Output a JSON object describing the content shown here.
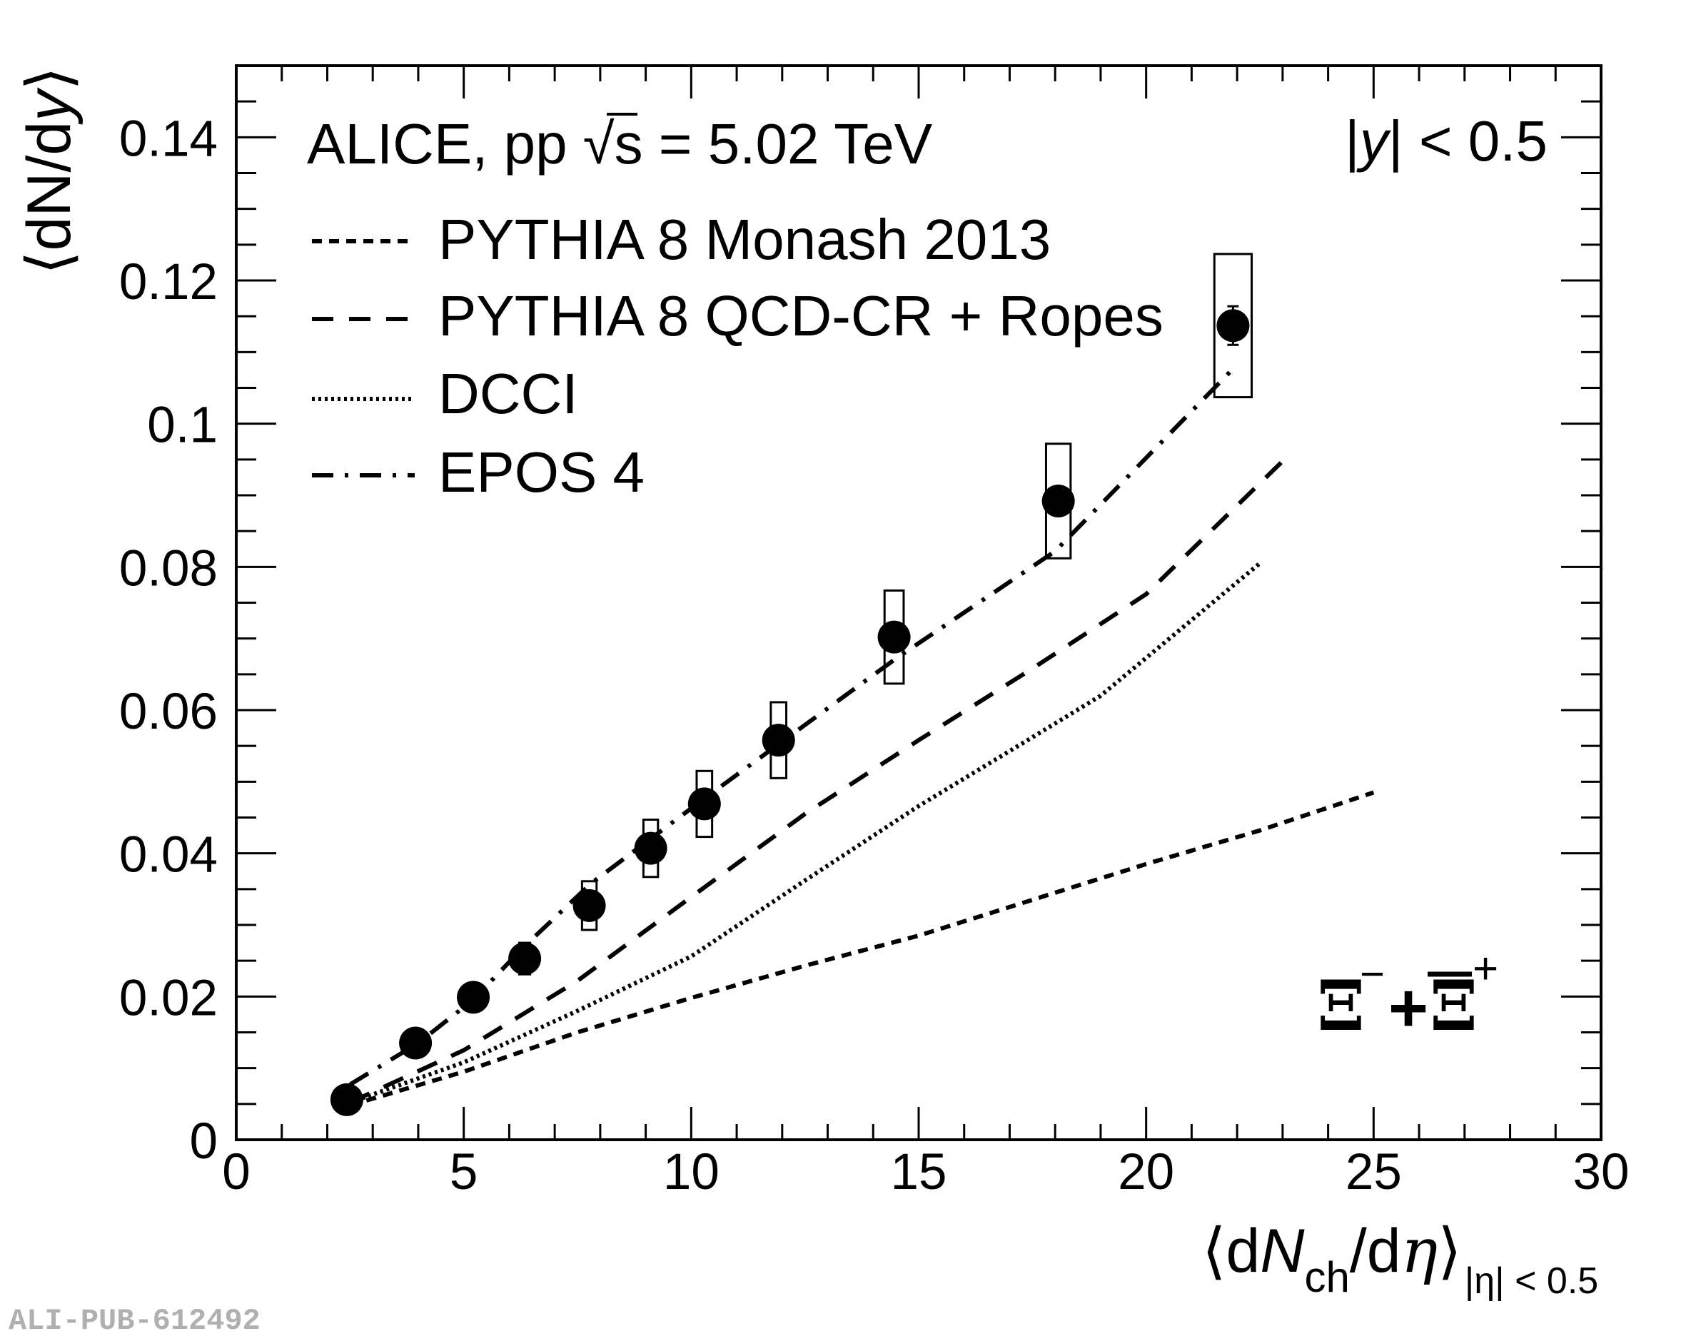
{
  "chart_data": {
    "type": "scatter",
    "title": "",
    "xlabel": {
      "open": "⟨d",
      "N": "N",
      "sub_ch": "ch",
      "slash_d": "/d",
      "eta": "η",
      "close": "⟩",
      "subscript": "|η| < 0.5"
    },
    "ylabel": {
      "open": "⟨dN/d",
      "y": "y",
      "close": "⟩"
    },
    "xlim": [
      0,
      30
    ],
    "ylim": [
      0,
      0.15
    ],
    "x_ticks": [
      {
        "value": 0,
        "label": "0"
      },
      {
        "value": 5,
        "label": "5"
      },
      {
        "value": 10,
        "label": "10"
      },
      {
        "value": 15,
        "label": "15"
      },
      {
        "value": 20,
        "label": "20"
      },
      {
        "value": 25,
        "label": "25"
      },
      {
        "value": 30,
        "label": "30"
      }
    ],
    "y_ticks": [
      {
        "value": 0,
        "label": "0"
      },
      {
        "value": 0.02,
        "label": "0.02"
      },
      {
        "value": 0.04,
        "label": "0.04"
      },
      {
        "value": 0.06,
        "label": "0.06"
      },
      {
        "value": 0.08,
        "label": "0.08"
      },
      {
        "value": 0.1,
        "label": "0.1"
      },
      {
        "value": 0.12,
        "label": "0.12"
      },
      {
        "value": 0.14,
        "label": "0.14"
      }
    ],
    "x_minor_step": 1,
    "y_minor_step": 0.005,
    "grid": false,
    "annotations": {
      "experiment": "ALICE, pp",
      "sqrt": "√",
      "s": "s",
      "energy": " = 5.02 TeV",
      "rapidity": {
        "bar1": "|",
        "y": "y",
        "rest": "| < 0.5"
      },
      "particle": {
        "xi1": "Ξ",
        "minus": "−",
        "plus": "+",
        "xi2": "Ξ",
        "plus_sup": "+"
      }
    },
    "legend_position": "top-left",
    "data_series": {
      "name": "Ξ⁻ + Ξ̄⁺ (ALICE data)",
      "marker": "filled-circle",
      "points": [
        {
          "x": 2.43,
          "y": 0.0056,
          "stat": 0.0003,
          "syst": 0.0005,
          "xsys": 0.08
        },
        {
          "x": 3.94,
          "y": 0.0135,
          "stat": 0.0004,
          "syst": 0.0008,
          "xsys": 0.09
        },
        {
          "x": 5.21,
          "y": 0.0199,
          "stat": 0.0005,
          "syst": 0.0012,
          "xsys": 0.1
        },
        {
          "x": 6.34,
          "y": 0.0253,
          "stat": 0.0006,
          "syst": 0.0022,
          "xsys": 0.12
        },
        {
          "x": 7.76,
          "y": 0.0327,
          "stat": 0.0007,
          "syst": 0.0034,
          "xsys": 0.16
        },
        {
          "x": 9.11,
          "y": 0.0407,
          "stat": 0.0008,
          "syst": 0.004,
          "xsys": 0.16
        },
        {
          "x": 10.29,
          "y": 0.0469,
          "stat": 0.0009,
          "syst": 0.0046,
          "xsys": 0.17
        },
        {
          "x": 11.92,
          "y": 0.0558,
          "stat": 0.001,
          "syst": 0.0053,
          "xsys": 0.17
        },
        {
          "x": 14.46,
          "y": 0.0702,
          "stat": 0.0012,
          "syst": 0.0065,
          "xsys": 0.21
        },
        {
          "x": 18.07,
          "y": 0.0892,
          "stat": 0.0015,
          "syst": 0.008,
          "xsys": 0.27
        },
        {
          "x": 21.91,
          "y": 0.1137,
          "stat": 0.0027,
          "syst": 0.01,
          "xsys": 0.41
        }
      ]
    },
    "series": [
      {
        "name": "PYTHIA 8 Monash 2013",
        "style": "dashed-short",
        "x": [
          2.5,
          5,
          7.5,
          10,
          12.5,
          15,
          17.5,
          20,
          22.5,
          25
        ],
        "y": [
          0.0048,
          0.0095,
          0.015,
          0.0198,
          0.0243,
          0.0285,
          0.0335,
          0.0385,
          0.0432,
          0.0485
        ]
      },
      {
        "name": "PYTHIA 8 QCD-CR + Ropes",
        "style": "dashed-long",
        "x": [
          2.5,
          5,
          7.5,
          10,
          12.5,
          15,
          17.5,
          20,
          23.2
        ],
        "y": [
          0.0052,
          0.0125,
          0.0222,
          0.0339,
          0.0455,
          0.0558,
          0.0658,
          0.0762,
          0.096
        ]
      },
      {
        "name": "DCCI",
        "style": "dotted",
        "x": [
          2.5,
          5,
          7.5,
          10,
          12.5,
          15,
          17.5,
          19,
          22.5
        ],
        "y": [
          0.0052,
          0.0108,
          0.018,
          0.0256,
          0.0362,
          0.0466,
          0.0562,
          0.062,
          0.0805
        ]
      },
      {
        "name": "EPOS 4",
        "style": "dash-dot",
        "x": [
          2.5,
          4,
          5.2,
          6.3,
          7.8,
          9.1,
          10.3,
          12,
          14.5,
          18,
          21.9
        ],
        "y": [
          0.0077,
          0.0135,
          0.0195,
          0.0268,
          0.0358,
          0.042,
          0.0477,
          0.0556,
          0.0672,
          0.0822,
          0.1076
        ]
      }
    ]
  },
  "watermark": "ALI-PUB-612492",
  "colors": {
    "ink": "#000000",
    "watermark": "#b0b0b0",
    "background": "#ffffff"
  }
}
